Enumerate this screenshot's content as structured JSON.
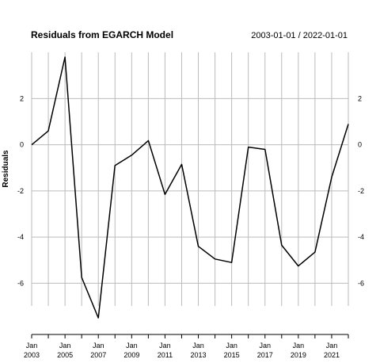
{
  "chart_data": {
    "type": "line",
    "title": "Residuals from EGARCH Model",
    "date_range": "2003-01-01 / 2022-01-01",
    "ylabel": "Residuals",
    "xlabel": "",
    "ylim": [
      -7.6,
      3.8
    ],
    "yticks": [
      2,
      0,
      -2,
      -4,
      -6
    ],
    "ytick_labels": [
      "2",
      "0",
      "-2",
      "-4",
      "-6"
    ],
    "xticks": [
      {
        "month": "Jan",
        "year": "2003"
      },
      {
        "month": "Jan",
        "year": "2005"
      },
      {
        "month": "Jan",
        "year": "2007"
      },
      {
        "month": "Jan",
        "year": "2009"
      },
      {
        "month": "Jan",
        "year": "2011"
      },
      {
        "month": "Jan",
        "year": "2013"
      },
      {
        "month": "Jan",
        "year": "2015"
      },
      {
        "month": "Jan",
        "year": "2017"
      },
      {
        "month": "Jan",
        "year": "2019"
      },
      {
        "month": "Jan",
        "year": "2021"
      }
    ],
    "grid": true,
    "line_color": "#000000",
    "grid_color": "#bbbbbb",
    "series": [
      {
        "x": [
          "2003-01-01",
          "2004-01-01",
          "2005-01-01",
          "2006-01-01",
          "2007-01-01",
          "2008-01-01",
          "2009-01-01",
          "2010-01-01",
          "2011-01-01",
          "2012-01-01",
          "2013-01-01",
          "2014-01-01",
          "2015-01-01",
          "2016-01-01",
          "2017-01-01",
          "2018-01-01",
          "2019-01-01",
          "2020-01-01",
          "2021-01-01",
          "2022-01-01"
        ],
        "values": [
          0.0,
          0.6,
          3.8,
          -5.75,
          -7.5,
          -0.9,
          -0.45,
          0.18,
          -2.15,
          -0.85,
          -4.4,
          -4.95,
          -5.1,
          -0.1,
          -0.2,
          -4.35,
          -5.25,
          -4.65,
          -1.4,
          0.9
        ]
      }
    ]
  }
}
